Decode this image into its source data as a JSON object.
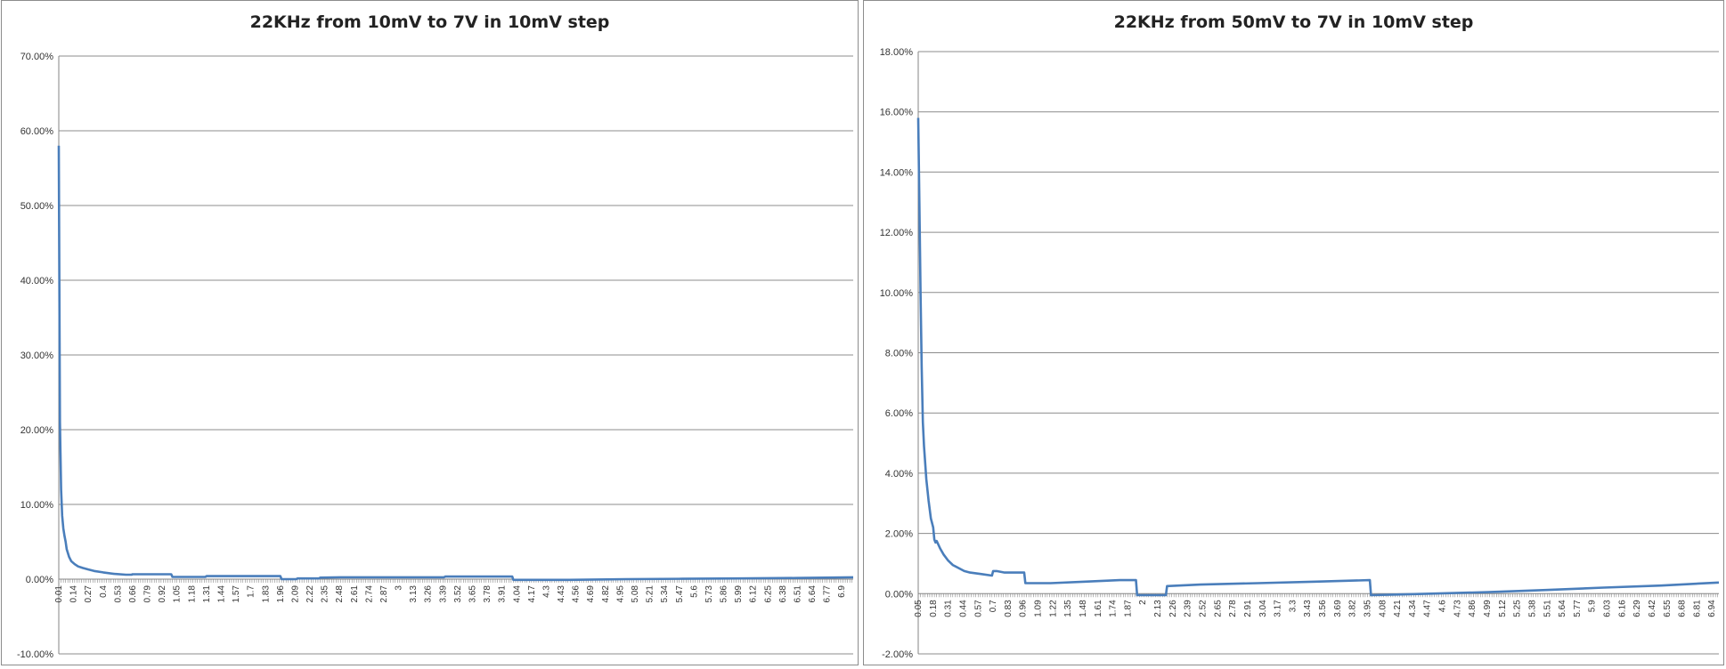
{
  "colors": {
    "series": "#4a7ebb",
    "grid": "#8c8c8c",
    "axis": "#868686"
  },
  "chart_data": [
    {
      "type": "line",
      "title": "22KHz from 10mV to 7V in 10mV step",
      "ylim": [
        -0.1,
        0.7
      ],
      "y_ticks": [
        "70.00%",
        "60.00%",
        "50.00%",
        "40.00%",
        "30.00%",
        "20.00%",
        "10.00%",
        "0.00%",
        "-10.00%"
      ],
      "y_tick_values": [
        0.7,
        0.6,
        0.5,
        0.4,
        0.3,
        0.2,
        0.1,
        0.0,
        -0.1
      ],
      "x_range": [
        0.01,
        7.0
      ],
      "x_ticks": [
        "0.01",
        "0.14",
        "0.27",
        "0.4",
        "0.53",
        "0.66",
        "0.79",
        "0.92",
        "1.05",
        "1.18",
        "1.31",
        "1.44",
        "1.57",
        "1.7",
        "1.83",
        "1.96",
        "2.09",
        "2.22",
        "2.35",
        "2.48",
        "2.61",
        "2.74",
        "2.87",
        "3",
        "3.13",
        "3.26",
        "3.39",
        "3.52",
        "3.65",
        "3.78",
        "3.91",
        "4.04",
        "4.17",
        "4.3",
        "4.43",
        "4.56",
        "4.69",
        "4.82",
        "4.95",
        "5.08",
        "5.21",
        "5.34",
        "5.47",
        "5.6",
        "5.73",
        "5.86",
        "5.99",
        "6.12",
        "6.25",
        "6.38",
        "6.51",
        "6.64",
        "6.77",
        "6.9"
      ],
      "grid": true,
      "legend": "none",
      "series": [
        {
          "x": [
            0.01,
            0.02,
            0.03,
            0.04,
            0.05,
            0.06,
            0.07,
            0.08,
            0.1,
            0.12,
            0.15,
            0.18,
            0.22,
            0.27,
            0.32,
            0.4,
            0.5,
            0.6,
            0.65,
            0.66,
            0.8,
            0.92,
            1.0,
            1.01,
            1.3,
            1.31,
            1.96,
            1.97,
            2.1,
            2.11,
            2.3,
            2.31,
            2.5,
            3.1,
            3.4,
            3.41,
            4.0,
            4.01,
            4.5,
            5.0,
            5.5,
            6.0,
            6.5,
            7.0
          ],
          "y": [
            0.58,
            0.21,
            0.12,
            0.085,
            0.068,
            0.058,
            0.05,
            0.04,
            0.03,
            0.024,
            0.02,
            0.017,
            0.015,
            0.013,
            0.011,
            0.009,
            0.007,
            0.006,
            0.006,
            0.0065,
            0.0065,
            0.0065,
            0.0065,
            0.003,
            0.003,
            0.004,
            0.004,
            0.0,
            0.0,
            0.001,
            0.001,
            0.002,
            0.0025,
            0.0025,
            0.0025,
            0.0035,
            0.0035,
            -0.001,
            -0.001,
            0.0,
            0.0005,
            0.001,
            0.0015,
            0.0025
          ]
        }
      ]
    },
    {
      "type": "line",
      "title": "22KHz from 50mV to 7V in 10mV step",
      "ylim": [
        -0.02,
        0.18
      ],
      "y_ticks": [
        "18.00%",
        "16.00%",
        "14.00%",
        "12.00%",
        "10.00%",
        "8.00%",
        "6.00%",
        "4.00%",
        "2.00%",
        "0.00%",
        "-2.00%"
      ],
      "y_tick_values": [
        0.18,
        0.16,
        0.14,
        0.12,
        0.1,
        0.08,
        0.06,
        0.04,
        0.02,
        0.0,
        -0.02
      ],
      "x_range": [
        0.05,
        7.0
      ],
      "x_ticks": [
        "0.05",
        "0.18",
        "0.31",
        "0.44",
        "0.57",
        "0.7",
        "0.83",
        "0.96",
        "1.09",
        "1.22",
        "1.35",
        "1.48",
        "1.61",
        "1.74",
        "1.87",
        "2",
        "2.13",
        "2.26",
        "2.39",
        "2.52",
        "2.65",
        "2.78",
        "2.91",
        "3.04",
        "3.17",
        "3.3",
        "3.43",
        "3.56",
        "3.69",
        "3.82",
        "3.95",
        "4.08",
        "4.21",
        "4.34",
        "4.47",
        "4.6",
        "4.73",
        "4.86",
        "4.99",
        "5.12",
        "5.25",
        "5.38",
        "5.51",
        "5.64",
        "5.77",
        "5.9",
        "6.03",
        "6.16",
        "6.29",
        "6.42",
        "6.55",
        "6.68",
        "6.81",
        "6.94"
      ],
      "grid": true,
      "legend": "none",
      "series": [
        {
          "x": [
            0.05,
            0.06,
            0.07,
            0.08,
            0.09,
            0.1,
            0.12,
            0.14,
            0.16,
            0.18,
            0.19,
            0.2,
            0.21,
            0.24,
            0.27,
            0.31,
            0.35,
            0.4,
            0.45,
            0.5,
            0.6,
            0.69,
            0.7,
            0.73,
            0.8,
            0.97,
            0.98,
            1.2,
            1.5,
            1.8,
            1.94,
            1.95,
            2.2,
            2.21,
            2.5,
            3.0,
            3.5,
            3.97,
            3.98,
            4.2,
            4.5,
            5.0,
            5.5,
            6.0,
            6.5,
            7.0
          ],
          "y": [
            0.158,
            0.13,
            0.1,
            0.075,
            0.057,
            0.049,
            0.038,
            0.031,
            0.025,
            0.022,
            0.018,
            0.017,
            0.0175,
            0.015,
            0.013,
            0.011,
            0.0095,
            0.0085,
            0.0075,
            0.007,
            0.0065,
            0.006,
            0.0075,
            0.0075,
            0.007,
            0.007,
            0.0035,
            0.0035,
            0.004,
            0.0045,
            0.0045,
            -0.0005,
            -0.0005,
            0.0025,
            0.003,
            0.0035,
            0.004,
            0.0045,
            -0.0005,
            -0.0003,
            0.0,
            0.0005,
            0.0012,
            0.002,
            0.0027,
            0.0037
          ]
        }
      ]
    }
  ]
}
